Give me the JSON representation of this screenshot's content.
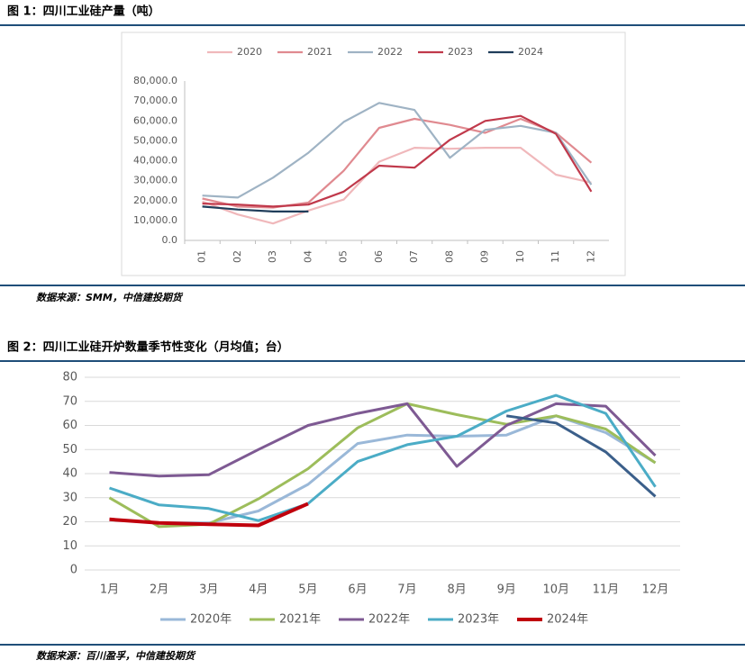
{
  "chart_data": [
    {
      "type": "line",
      "title": "图 1：四川工业硅产量（吨）",
      "source": "数据来源：SMM，中信建投期货",
      "categories": [
        "01",
        "02",
        "03",
        "04",
        "05",
        "06",
        "07",
        "08",
        "09",
        "10",
        "11",
        "12"
      ],
      "ylim": [
        0,
        80000
      ],
      "yticks": [
        {
          "value": 0,
          "label": "0.0"
        },
        {
          "value": 10000,
          "label": "10,000.0"
        },
        {
          "value": 20000,
          "label": "20,000.0"
        },
        {
          "value": 30000,
          "label": "30,000.0"
        },
        {
          "value": 40000,
          "label": "40,000.0"
        },
        {
          "value": 50000,
          "label": "50,000.0"
        },
        {
          "value": 60000,
          "label": "60,000.0"
        },
        {
          "value": 70000,
          "label": "70,000.0"
        },
        {
          "value": 80000,
          "label": "80,000.0"
        }
      ],
      "grid": false,
      "legend": "top",
      "series": [
        {
          "name": "2020",
          "color": "#f0b8bb",
          "values": [
            19500,
            13000,
            8500,
            15000,
            20500,
            39500,
            46500,
            46000,
            46500,
            46500,
            33000,
            29000
          ]
        },
        {
          "name": "2021",
          "color": "#e08a90",
          "values": [
            21000,
            17000,
            16500,
            19000,
            35000,
            56500,
            61000,
            58000,
            54000,
            61000,
            54000,
            39000
          ]
        },
        {
          "name": "2022",
          "color": "#9fb3c4",
          "values": [
            22500,
            21500,
            31500,
            44000,
            59500,
            69000,
            65500,
            41500,
            55500,
            57500,
            54000,
            28000
          ]
        },
        {
          "name": "2023",
          "color": "#c0394b",
          "values": [
            18500,
            18000,
            17000,
            18000,
            24500,
            37500,
            36500,
            50500,
            60000,
            62500,
            53500,
            24500
          ]
        },
        {
          "name": "2024",
          "color": "#1f3d5a",
          "values": [
            17000,
            15500,
            14500,
            14500,
            null,
            null,
            null,
            null,
            null,
            null,
            null,
            null
          ]
        }
      ]
    },
    {
      "type": "line",
      "title": "图 2：四川工业硅开炉数量季节性变化（月均值；台）",
      "source": "数据来源：百川盈孚，中信建投期货",
      "categories": [
        "1月",
        "2月",
        "3月",
        "4月",
        "5月",
        "6月",
        "7月",
        "8月",
        "9月",
        "10月",
        "11月",
        "12月"
      ],
      "ylim": [
        0,
        80
      ],
      "yticks": [
        0,
        10,
        20,
        30,
        40,
        50,
        60,
        70,
        80
      ],
      "grid": true,
      "legend": "bottom",
      "series": [
        {
          "name": "2020年",
          "color": "#9ab8d8",
          "values": [
            21,
            19.5,
            19.5,
            24.5,
            35.5,
            52.5,
            56,
            55.5,
            56,
            64,
            57,
            44.5
          ]
        },
        {
          "name": "2021年",
          "color": "#9dbd5b",
          "values": [
            30,
            18,
            19,
            29.5,
            42,
            59,
            69,
            64.5,
            60.5,
            64,
            58.5,
            44.5
          ]
        },
        {
          "name": "2022年",
          "color": "#7e5a93",
          "values": [
            40.5,
            39,
            39.5,
            50,
            60,
            65,
            69,
            43,
            60,
            69,
            68,
            47.5
          ]
        },
        {
          "name": "2023年",
          "color": "#4bacc6",
          "values": [
            34,
            27,
            25.5,
            20.5,
            27.5,
            45,
            52,
            55.5,
            66,
            72.5,
            65,
            34.5
          ]
        },
        {
          "name": "2024年",
          "color": "#c0000d",
          "values": [
            21,
            19.5,
            19,
            18.5,
            27.5,
            null,
            null,
            null,
            null,
            null,
            null,
            null
          ]
        },
        {
          "color": "#3b5f8a",
          "values": [
            null,
            null,
            null,
            null,
            null,
            null,
            null,
            null,
            64,
            61,
            49,
            30.5
          ]
        }
      ]
    }
  ]
}
